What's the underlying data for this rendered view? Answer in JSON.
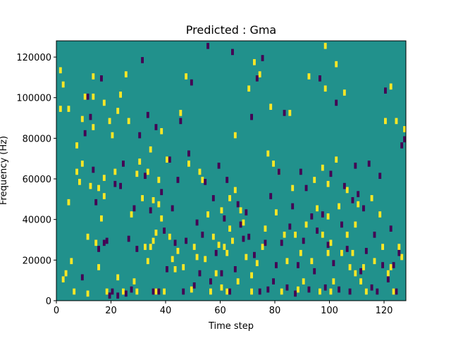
{
  "chart_data": {
    "type": "heatmap",
    "title": "Predicted : Gma",
    "xlabel": "Time step",
    "ylabel": "Frequency (Hz)",
    "xlim": [
      0,
      128
    ],
    "ylim": [
      0,
      128000
    ],
    "x_ticks": [
      0,
      20,
      40,
      60,
      80,
      100,
      120
    ],
    "y_ticks": [
      0,
      20000,
      40000,
      60000,
      80000,
      100000,
      120000
    ],
    "x_tick_labels": [
      "0",
      "20",
      "40",
      "60",
      "80",
      "100",
      "120"
    ],
    "y_tick_labels": [
      "0",
      "20000",
      "40000",
      "60000",
      "80000",
      "100000",
      "120000"
    ],
    "background_value": 0,
    "value_levels": [
      -1,
      0,
      1
    ],
    "colors": {
      "negative": "#440154",
      "zero": "#21918c",
      "positive": "#fde725"
    },
    "cell_height_hz": 3000,
    "positive_cells": [
      [
        1,
        112000
      ],
      [
        1,
        93000
      ],
      [
        2,
        105000
      ],
      [
        2,
        9000
      ],
      [
        3,
        12000
      ],
      [
        4,
        93000
      ],
      [
        4,
        47000
      ],
      [
        5,
        18000
      ],
      [
        6,
        3000
      ],
      [
        7,
        75000
      ],
      [
        7,
        62000
      ],
      [
        8,
        57000
      ],
      [
        9,
        66000
      ],
      [
        9,
        88000
      ],
      [
        10,
        99000
      ],
      [
        11,
        30000
      ],
      [
        11,
        2000
      ],
      [
        12,
        55000
      ],
      [
        13,
        84000
      ],
      [
        13,
        99000
      ],
      [
        13,
        109000
      ],
      [
        14,
        27000
      ],
      [
        15,
        54000
      ],
      [
        15,
        15000
      ],
      [
        16,
        39000
      ],
      [
        17,
        96000
      ],
      [
        17,
        59000
      ],
      [
        17,
        50000
      ],
      [
        18,
        3000
      ],
      [
        19,
        87000
      ],
      [
        20,
        80000
      ],
      [
        21,
        62000
      ],
      [
        22,
        10000
      ],
      [
        22,
        92000
      ],
      [
        23,
        100000
      ],
      [
        24,
        3000
      ],
      [
        25,
        110000
      ],
      [
        26,
        87000
      ],
      [
        27,
        41000
      ],
      [
        28,
        8000
      ],
      [
        29,
        3000
      ],
      [
        29,
        61000
      ],
      [
        30,
        67000
      ],
      [
        31,
        49000
      ],
      [
        32,
        25000
      ],
      [
        33,
        18000
      ],
      [
        33,
        62000
      ],
      [
        34,
        73000
      ],
      [
        34,
        25000
      ],
      [
        35,
        48000
      ],
      [
        35,
        28000
      ],
      [
        36,
        32000
      ],
      [
        36,
        3000
      ],
      [
        37,
        46000
      ],
      [
        37,
        58000
      ],
      [
        38,
        82000
      ],
      [
        38,
        39000
      ],
      [
        39,
        3000
      ],
      [
        40,
        68000
      ],
      [
        41,
        30000
      ],
      [
        42,
        19000
      ],
      [
        43,
        14000
      ],
      [
        44,
        23000
      ],
      [
        45,
        91000
      ],
      [
        46,
        15000
      ],
      [
        47,
        109000
      ],
      [
        48,
        66000
      ],
      [
        49,
        4000
      ],
      [
        50,
        25000
      ],
      [
        51,
        20000
      ],
      [
        52,
        62000
      ],
      [
        53,
        58000
      ],
      [
        54,
        19000
      ],
      [
        55,
        41000
      ],
      [
        56,
        3000
      ],
      [
        57,
        30000
      ],
      [
        58,
        12000
      ],
      [
        59,
        26000
      ],
      [
        60,
        43000
      ],
      [
        60,
        5000
      ],
      [
        61,
        25000
      ],
      [
        62,
        22000
      ],
      [
        62,
        3000
      ],
      [
        63,
        49000
      ],
      [
        63,
        34000
      ],
      [
        64,
        28000
      ],
      [
        65,
        80000
      ],
      [
        65,
        53000
      ],
      [
        66,
        8000
      ],
      [
        67,
        43000
      ],
      [
        68,
        37000
      ],
      [
        69,
        20000
      ],
      [
        70,
        103000
      ],
      [
        71,
        11000
      ],
      [
        71,
        3000
      ],
      [
        72,
        116000
      ],
      [
        73,
        17000
      ],
      [
        74,
        110000
      ],
      [
        75,
        25000
      ],
      [
        76,
        34000
      ],
      [
        77,
        71000
      ],
      [
        78,
        94000
      ],
      [
        79,
        66000
      ],
      [
        80,
        42000
      ],
      [
        81,
        62000
      ],
      [
        82,
        3000
      ],
      [
        83,
        31000
      ],
      [
        84,
        18000
      ],
      [
        85,
        91000
      ],
      [
        86,
        54000
      ],
      [
        87,
        31000
      ],
      [
        88,
        4000
      ],
      [
        89,
        22000
      ],
      [
        90,
        8000
      ],
      [
        91,
        36000
      ],
      [
        92,
        109000
      ],
      [
        93,
        18000
      ],
      [
        94,
        58000
      ],
      [
        95,
        44000
      ],
      [
        96,
        3000
      ],
      [
        97,
        31000
      ],
      [
        97,
        64000
      ],
      [
        98,
        124000
      ],
      [
        98,
        103000
      ],
      [
        99,
        56000
      ],
      [
        99,
        40000
      ],
      [
        99,
        22000
      ],
      [
        100,
        27000
      ],
      [
        100,
        3000
      ],
      [
        101,
        8000
      ],
      [
        102,
        115000
      ],
      [
        102,
        68000
      ],
      [
        103,
        45000
      ],
      [
        104,
        22000
      ],
      [
        105,
        101000
      ],
      [
        106,
        31000
      ],
      [
        106,
        53000
      ],
      [
        107,
        15000
      ],
      [
        108,
        22000
      ],
      [
        109,
        36000
      ],
      [
        109,
        12000
      ],
      [
        110,
        46000
      ],
      [
        111,
        8000
      ],
      [
        112,
        15000
      ],
      [
        113,
        3000
      ],
      [
        115,
        49000
      ],
      [
        116,
        18000
      ],
      [
        118,
        41000
      ],
      [
        119,
        25000
      ],
      [
        120,
        87000
      ],
      [
        121,
        12000
      ],
      [
        122,
        104000
      ],
      [
        122,
        15000
      ],
      [
        123,
        3000
      ],
      [
        124,
        87000
      ],
      [
        125,
        25000
      ],
      [
        126,
        20000
      ],
      [
        127,
        83000
      ]
    ],
    "negative_cells": [
      [
        9,
        10000
      ],
      [
        10,
        81000
      ],
      [
        11,
        99000
      ],
      [
        12,
        89000
      ],
      [
        13,
        63000
      ],
      [
        14,
        47000
      ],
      [
        15,
        24000
      ],
      [
        16,
        108000
      ],
      [
        17,
        27000
      ],
      [
        18,
        28000
      ],
      [
        19,
        1000
      ],
      [
        20,
        3000
      ],
      [
        21,
        56000
      ],
      [
        22,
        1000
      ],
      [
        23,
        55000
      ],
      [
        24,
        66000
      ],
      [
        25,
        2000
      ],
      [
        26,
        29000
      ],
      [
        27,
        4000
      ],
      [
        28,
        44000
      ],
      [
        29,
        24000
      ],
      [
        30,
        80000
      ],
      [
        31,
        117000
      ],
      [
        32,
        60000
      ],
      [
        33,
        90000
      ],
      [
        34,
        43000
      ],
      [
        35,
        3000
      ],
      [
        36,
        84000
      ],
      [
        37,
        3000
      ],
      [
        38,
        52000
      ],
      [
        39,
        33000
      ],
      [
        40,
        14000
      ],
      [
        41,
        68000
      ],
      [
        42,
        44000
      ],
      [
        43,
        27000
      ],
      [
        44,
        58000
      ],
      [
        45,
        87000
      ],
      [
        46,
        3000
      ],
      [
        47,
        28000
      ],
      [
        48,
        71000
      ],
      [
        49,
        106000
      ],
      [
        50,
        6000
      ],
      [
        51,
        37000
      ],
      [
        52,
        12000
      ],
      [
        53,
        31000
      ],
      [
        54,
        57000
      ],
      [
        55,
        124000
      ],
      [
        56,
        8000
      ],
      [
        57,
        49000
      ],
      [
        58,
        22000
      ],
      [
        59,
        65000
      ],
      [
        60,
        12000
      ],
      [
        61,
        39000
      ],
      [
        62,
        58000
      ],
      [
        63,
        3000
      ],
      [
        64,
        121000
      ],
      [
        65,
        14000
      ],
      [
        66,
        46000
      ],
      [
        67,
        36000
      ],
      [
        68,
        29000
      ],
      [
        69,
        42000
      ],
      [
        70,
        30000
      ],
      [
        71,
        89000
      ],
      [
        72,
        21000
      ],
      [
        73,
        108000
      ],
      [
        74,
        3000
      ],
      [
        75,
        118000
      ],
      [
        76,
        27000
      ],
      [
        77,
        4000
      ],
      [
        78,
        50000
      ],
      [
        79,
        8000
      ],
      [
        80,
        16000
      ],
      [
        81,
        62000
      ],
      [
        82,
        27000
      ],
      [
        83,
        91000
      ],
      [
        84,
        5000
      ],
      [
        85,
        35000
      ],
      [
        86,
        45000
      ],
      [
        87,
        2000
      ],
      [
        88,
        16000
      ],
      [
        89,
        62000
      ],
      [
        90,
        28000
      ],
      [
        91,
        54000
      ],
      [
        92,
        4000
      ],
      [
        93,
        40000
      ],
      [
        94,
        13000
      ],
      [
        95,
        33000
      ],
      [
        96,
        108000
      ],
      [
        97,
        41000
      ],
      [
        98,
        5000
      ],
      [
        99,
        26000
      ],
      [
        100,
        61000
      ],
      [
        101,
        17000
      ],
      [
        102,
        96000
      ],
      [
        103,
        4000
      ],
      [
        104,
        36000
      ],
      [
        105,
        55000
      ],
      [
        106,
        24000
      ],
      [
        107,
        3000
      ],
      [
        108,
        48000
      ],
      [
        109,
        65000
      ],
      [
        110,
        51000
      ],
      [
        111,
        13000
      ],
      [
        112,
        44000
      ],
      [
        113,
        23000
      ],
      [
        114,
        66000
      ],
      [
        115,
        5000
      ],
      [
        116,
        31000
      ],
      [
        117,
        3000
      ],
      [
        118,
        60000
      ],
      [
        119,
        16000
      ],
      [
        120,
        102000
      ],
      [
        121,
        9000
      ],
      [
        122,
        34000
      ],
      [
        123,
        16000
      ],
      [
        124,
        3000
      ],
      [
        125,
        22000
      ],
      [
        126,
        75000
      ],
      [
        127,
        78000
      ]
    ]
  }
}
